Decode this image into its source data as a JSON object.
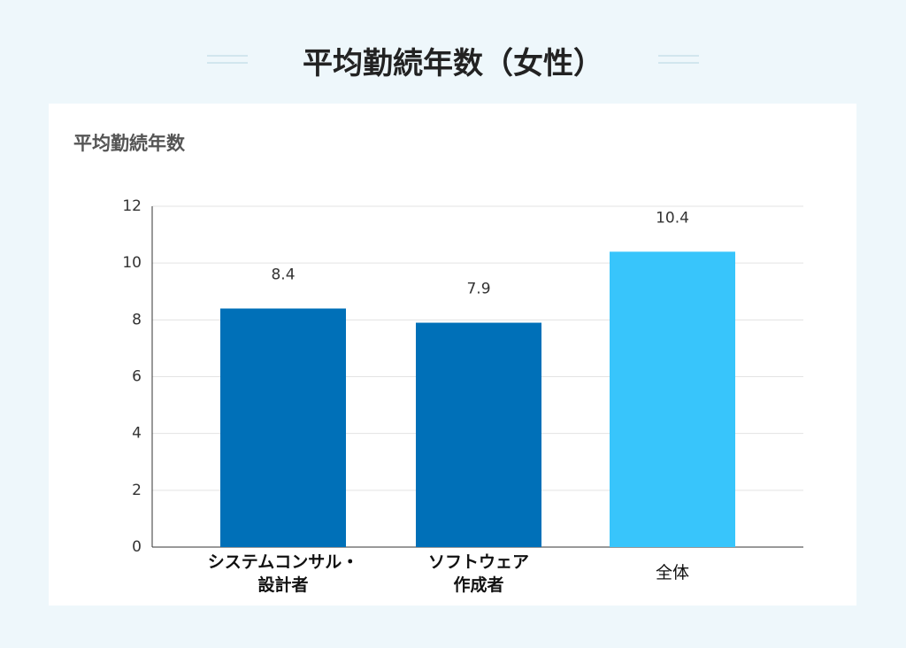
{
  "title": "平均勤続年数（女性）",
  "chart_data": {
    "type": "bar",
    "title": "平均勤続年数",
    "categories": [
      "システムコンサル・\n設計者",
      "ソフトウェア\n作成者",
      "全体"
    ],
    "values": [
      8.4,
      7.9,
      10.4
    ],
    "colors": [
      "#0070b8",
      "#0070b8",
      "#38c5fb"
    ],
    "ylim": [
      0,
      12
    ],
    "yticks": [
      0,
      2,
      4,
      6,
      8,
      10,
      12
    ],
    "grid": true
  }
}
